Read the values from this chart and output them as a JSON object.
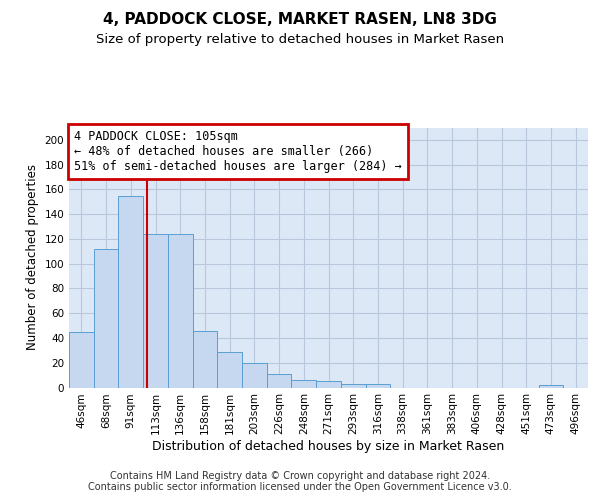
{
  "title": "4, PADDOCK CLOSE, MARKET RASEN, LN8 3DG",
  "subtitle": "Size of property relative to detached houses in Market Rasen",
  "xlabel": "Distribution of detached houses by size in Market Rasen",
  "ylabel": "Number of detached properties",
  "bar_labels": [
    "46sqm",
    "68sqm",
    "91sqm",
    "113sqm",
    "136sqm",
    "158sqm",
    "181sqm",
    "203sqm",
    "226sqm",
    "248sqm",
    "271sqm",
    "293sqm",
    "316sqm",
    "338sqm",
    "361sqm",
    "383sqm",
    "406sqm",
    "428sqm",
    "451sqm",
    "473sqm",
    "496sqm"
  ],
  "bar_values": [
    45,
    112,
    155,
    124,
    124,
    46,
    29,
    20,
    11,
    6,
    5,
    3,
    3,
    0,
    0,
    0,
    0,
    0,
    0,
    2,
    0
  ],
  "bar_color": "#c5d8f0",
  "bar_edge_color": "#5a9fd4",
  "grid_color": "#b8c8dc",
  "background_color": "#dce8f5",
  "annotation_line1": "4 PADDOCK CLOSE: 105sqm",
  "annotation_line2": "← 48% of detached houses are smaller (266)",
  "annotation_line3": "51% of semi-detached houses are larger (284) →",
  "annotation_box_color": "#ffffff",
  "annotation_box_edge": "#cc0000",
  "red_line_color": "#cc0000",
  "ylim": [
    0,
    210
  ],
  "yticks": [
    0,
    20,
    40,
    60,
    80,
    100,
    120,
    140,
    160,
    180,
    200
  ],
  "footer": "Contains HM Land Registry data © Crown copyright and database right 2024.\nContains public sector information licensed under the Open Government Licence v3.0.",
  "title_fontsize": 11,
  "subtitle_fontsize": 9.5,
  "xlabel_fontsize": 9,
  "ylabel_fontsize": 8.5,
  "tick_fontsize": 7.5,
  "annotation_fontsize": 8.5,
  "footer_fontsize": 7
}
